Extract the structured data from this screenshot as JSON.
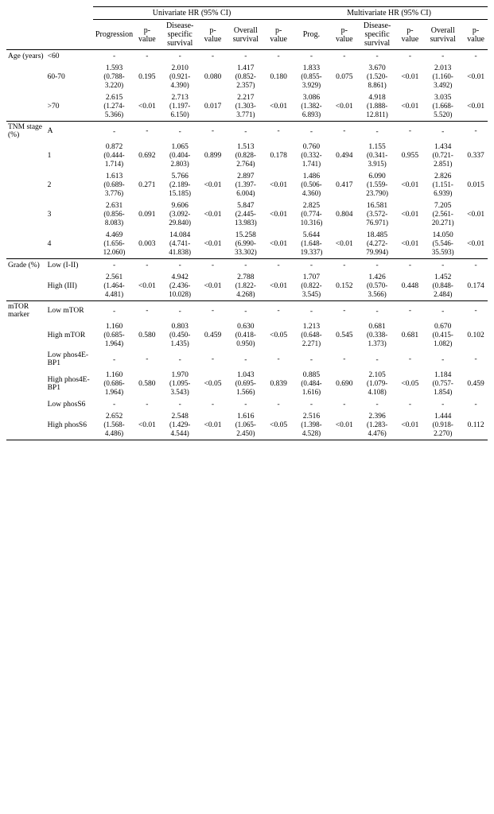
{
  "header": {
    "uni": "Univariate HR (95% CI)",
    "multi": "Multivariate HR (95% CI)",
    "prog": "Progression",
    "dss": "Disease-specific survival",
    "os": "Overall survival",
    "pv": "p-value",
    "prog2": "Prog."
  },
  "rows": [
    {
      "group": "Age (years)",
      "level": "<60",
      "uP": {
        "hr": "-",
        "ci": "",
        "p": "-"
      },
      "uD": {
        "hr": "-",
        "ci": "",
        "p": "-"
      },
      "uO": {
        "hr": "-",
        "ci": "",
        "p": "-"
      },
      "mP": {
        "hr": "-",
        "ci": "",
        "p": "-"
      },
      "mD": {
        "hr": "-",
        "ci": "",
        "p": "-"
      },
      "mO": {
        "hr": "-",
        "ci": "",
        "p": "-"
      }
    },
    {
      "group": "",
      "level": "60-70",
      "uP": {
        "hr": "1.593",
        "ci": "(0.788-3.220)",
        "p": "0.195"
      },
      "uD": {
        "hr": "2.010",
        "ci": "(0.921-4.390)",
        "p": "0.080"
      },
      "uO": {
        "hr": "1.417",
        "ci": "(0.852-2.357)",
        "p": "0.180"
      },
      "mP": {
        "hr": "1.833",
        "ci": "(0.855-3.929)",
        "p": "0.075"
      },
      "mD": {
        "hr": "3.670",
        "ci": "(1.520-8.861)",
        "p": "<0.01"
      },
      "mO": {
        "hr": "2.013",
        "ci": "(1.160-3.492)",
        "p": "<0.01"
      }
    },
    {
      "group": "",
      "level": ">70",
      "uP": {
        "hr": "2.615",
        "ci": "(1.274-5.366)",
        "p": "<0.01"
      },
      "uD": {
        "hr": "2.713",
        "ci": "(1.197-6.150)",
        "p": "0.017"
      },
      "uO": {
        "hr": "2.217",
        "ci": "(1.303-3.771)",
        "p": "<0.01"
      },
      "mP": {
        "hr": "3.086",
        "ci": "(1.382-6.893)",
        "p": "<0.01"
      },
      "mD": {
        "hr": "4.918",
        "ci": "(1.888-12.811)",
        "p": "<0.01"
      },
      "mO": {
        "hr": "3.035",
        "ci": "(1.668-5.520)",
        "p": "<0.01"
      },
      "bottom": true
    },
    {
      "group": "TNM stage (%)",
      "level": "A",
      "uP": {
        "hr": "-",
        "ci": "",
        "p": "-"
      },
      "uD": {
        "hr": "-",
        "ci": "",
        "p": "-"
      },
      "uO": {
        "hr": "-",
        "ci": "",
        "p": "-"
      },
      "mP": {
        "hr": "-",
        "ci": "",
        "p": "-"
      },
      "mD": {
        "hr": "-",
        "ci": "",
        "p": "-"
      },
      "mO": {
        "hr": "-",
        "ci": "",
        "p": "-"
      }
    },
    {
      "group": "",
      "level": "1",
      "uP": {
        "hr": "0.872",
        "ci": "(0.444-1.714)",
        "p": "0.692"
      },
      "uD": {
        "hr": "1.065",
        "ci": "(0.404-2.803)",
        "p": "0.899"
      },
      "uO": {
        "hr": "1.513",
        "ci": "(0.828-2.764)",
        "p": "0.178"
      },
      "mP": {
        "hr": "0.760",
        "ci": "(0.332-1.741)",
        "p": "0.494"
      },
      "mD": {
        "hr": "1.155",
        "ci": "(0.341-3.915)",
        "p": "0.955"
      },
      "mO": {
        "hr": "1.434",
        "ci": "(0.721-2.851)",
        "p": "0.337"
      }
    },
    {
      "group": "",
      "level": "2",
      "uP": {
        "hr": "1.613",
        "ci": "(0.689-3.776)",
        "p": "0.271"
      },
      "uD": {
        "hr": "5.766",
        "ci": "(2.189-15.185)",
        "p": "<0.01"
      },
      "uO": {
        "hr": "2.897",
        "ci": "(1.397-6.004)",
        "p": "<0.01"
      },
      "mP": {
        "hr": "1.486",
        "ci": "(0.506-4.360)",
        "p": "0.417"
      },
      "mD": {
        "hr": "6.090",
        "ci": "(1.559-23.790)",
        "p": "<0.01"
      },
      "mO": {
        "hr": "2.826",
        "ci": "(1.151-6.939)",
        "p": "0.015"
      }
    },
    {
      "group": "",
      "level": "3",
      "uP": {
        "hr": "2.631",
        "ci": "(0.856-8.083)",
        "p": "0.091"
      },
      "uD": {
        "hr": "9.606",
        "ci": "(3.092-29.840)",
        "p": "<0.01"
      },
      "uO": {
        "hr": "5.847",
        "ci": "(2.445-13.983)",
        "p": "<0.01"
      },
      "mP": {
        "hr": "2.825",
        "ci": "(0.774-10.316)",
        "p": "0.804"
      },
      "mD": {
        "hr": "16.581",
        "ci": "(3.572-76.971)",
        "p": "<0.01"
      },
      "mO": {
        "hr": "7.205",
        "ci": "(2.561-20.271)",
        "p": "<0.01"
      }
    },
    {
      "group": "",
      "level": "4",
      "uP": {
        "hr": "4.469",
        "ci": "(1.656-12.060)",
        "p": "0.003"
      },
      "uD": {
        "hr": "14.084",
        "ci": "(4.741-41.838)",
        "p": "<0.01"
      },
      "uO": {
        "hr": "15.258",
        "ci": "(6.990-33.302)",
        "p": "<0.01"
      },
      "mP": {
        "hr": "5.644",
        "ci": "(1.648-19.337)",
        "p": "<0.01"
      },
      "mD": {
        "hr": "18.485",
        "ci": "(4.272-79.994)",
        "p": "<0.01"
      },
      "mO": {
        "hr": "14.050",
        "ci": "(5.546-35.593)",
        "p": "<0.01"
      },
      "bottom": true
    },
    {
      "group": "Grade (%)",
      "level": "Low (I-II)",
      "uP": {
        "hr": "-",
        "ci": "",
        "p": "-"
      },
      "uD": {
        "hr": "-",
        "ci": "",
        "p": "-"
      },
      "uO": {
        "hr": "-",
        "ci": "",
        "p": "-"
      },
      "mP": {
        "hr": "-",
        "ci": "",
        "p": "-"
      },
      "mD": {
        "hr": "-",
        "ci": "",
        "p": "-"
      },
      "mO": {
        "hr": "-",
        "ci": "",
        "p": "-"
      }
    },
    {
      "group": "",
      "level": "High (III)",
      "uP": {
        "hr": "2.561",
        "ci": "(1.464-4.481)",
        "p": "<0.01"
      },
      "uD": {
        "hr": "4.942",
        "ci": "(2.436-10.028)",
        "p": "<0.01"
      },
      "uO": {
        "hr": "2.788",
        "ci": "(1.822-4.268)",
        "p": "<0.01"
      },
      "mP": {
        "hr": "1.707",
        "ci": "(0.822-3.545)",
        "p": "0.152"
      },
      "mD": {
        "hr": "1.426",
        "ci": "(0.570-3.566)",
        "p": "0.448"
      },
      "mO": {
        "hr": "1.452",
        "ci": "(0.848-2.484)",
        "p": "0.174"
      },
      "bottom": true
    },
    {
      "group": "mTOR marker",
      "level": "Low mTOR",
      "uP": {
        "hr": "-",
        "ci": "",
        "p": "-"
      },
      "uD": {
        "hr": "-",
        "ci": "",
        "p": "-"
      },
      "uO": {
        "hr": "-",
        "ci": "",
        "p": "-"
      },
      "mP": {
        "hr": "-",
        "ci": "",
        "p": "-"
      },
      "mD": {
        "hr": "-",
        "ci": "",
        "p": "-"
      },
      "mO": {
        "hr": "-",
        "ci": "",
        "p": "-"
      }
    },
    {
      "group": "",
      "level": "High mTOR",
      "uP": {
        "hr": "1.160",
        "ci": "(0.685-1.964)",
        "p": "0.580"
      },
      "uD": {
        "hr": "0.803",
        "ci": "(0.450-1.435)",
        "p": "0.459"
      },
      "uO": {
        "hr": "0.630",
        "ci": "(0.418-0.950)",
        "p": "<0.05"
      },
      "mP": {
        "hr": "1.213",
        "ci": "(0.648-2.271)",
        "p": "0.545"
      },
      "mD": {
        "hr": "0.681",
        "ci": "(0.338-1.373)",
        "p": "0.681"
      },
      "mO": {
        "hr": "0.670",
        "ci": "(0.415-1.082)",
        "p": "0.102"
      }
    },
    {
      "group": "",
      "level": "Low phos4E-BP1",
      "uP": {
        "hr": "-",
        "ci": "",
        "p": "-"
      },
      "uD": {
        "hr": "-",
        "ci": "",
        "p": "-"
      },
      "uO": {
        "hr": "-",
        "ci": "",
        "p": "-"
      },
      "mP": {
        "hr": "-",
        "ci": "",
        "p": "-"
      },
      "mD": {
        "hr": "-",
        "ci": "",
        "p": "-"
      },
      "mO": {
        "hr": "-",
        "ci": "",
        "p": "-"
      }
    },
    {
      "group": "",
      "level": "High phos4E-BP1",
      "uP": {
        "hr": "1.160",
        "ci": "(0.686-1.964)",
        "p": "0.580"
      },
      "uD": {
        "hr": "1.970",
        "ci": "(1.095-3.543)",
        "p": "<0.05"
      },
      "uO": {
        "hr": "1.043",
        "ci": "(0.695-1.566)",
        "p": "0.839"
      },
      "mP": {
        "hr": "0.885",
        "ci": "(0.484-1.616)",
        "p": "0.690"
      },
      "mD": {
        "hr": "2.105",
        "ci": "(1.079-4.108)",
        "p": "<0.05"
      },
      "mO": {
        "hr": "1.184",
        "ci": "(0.757-1.854)",
        "p": "0.459"
      }
    },
    {
      "group": "",
      "level": "Low phosS6",
      "uP": {
        "hr": "-",
        "ci": "",
        "p": "-"
      },
      "uD": {
        "hr": "-",
        "ci": "",
        "p": "-"
      },
      "uO": {
        "hr": "-",
        "ci": "",
        "p": "-"
      },
      "mP": {
        "hr": "-",
        "ci": "",
        "p": "-"
      },
      "mD": {
        "hr": "-",
        "ci": "",
        "p": "-"
      },
      "mO": {
        "hr": "-",
        "ci": "",
        "p": "-"
      }
    },
    {
      "group": "",
      "level": "High phosS6",
      "uP": {
        "hr": "2.652",
        "ci": "(1.568-4.486)",
        "p": "<0.01"
      },
      "uD": {
        "hr": "2.548",
        "ci": "(1.429-4.544)",
        "p": "<0.01"
      },
      "uO": {
        "hr": "1.616",
        "ci": "(1.065-2.450)",
        "p": "<0.05"
      },
      "mP": {
        "hr": "2.516",
        "ci": "(1.398-4.528)",
        "p": "<0.01"
      },
      "mD": {
        "hr": "2.396",
        "ci": "(1.283-4.476)",
        "p": "<0.01"
      },
      "mO": {
        "hr": "1.444",
        "ci": "(0.918-2.270)",
        "p": "0.112"
      },
      "bottom": true
    }
  ]
}
